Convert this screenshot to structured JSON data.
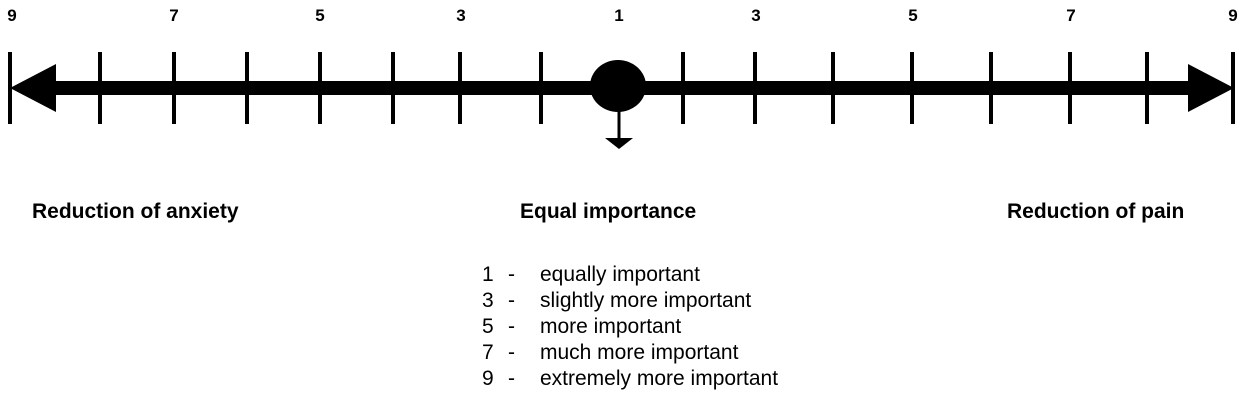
{
  "scale": {
    "ticks_labels": [
      "9",
      "7",
      "5",
      "3",
      "1",
      "3",
      "5",
      "7",
      "9"
    ],
    "left_label": "Reduction of anxiety",
    "center_label": "Equal importance",
    "right_label": "Reduction of pain",
    "marker_value": 1
  },
  "legend": [
    {
      "value": "1",
      "dash": "-",
      "text": "equally important"
    },
    {
      "value": "3",
      "dash": "-",
      "text": "slightly more important"
    },
    {
      "value": "5",
      "dash": "-",
      "text": "more important"
    },
    {
      "value": "7",
      "dash": "-",
      "text": "much more important"
    },
    {
      "value": "9",
      "dash": "-",
      "text": "extremely more important"
    }
  ]
}
